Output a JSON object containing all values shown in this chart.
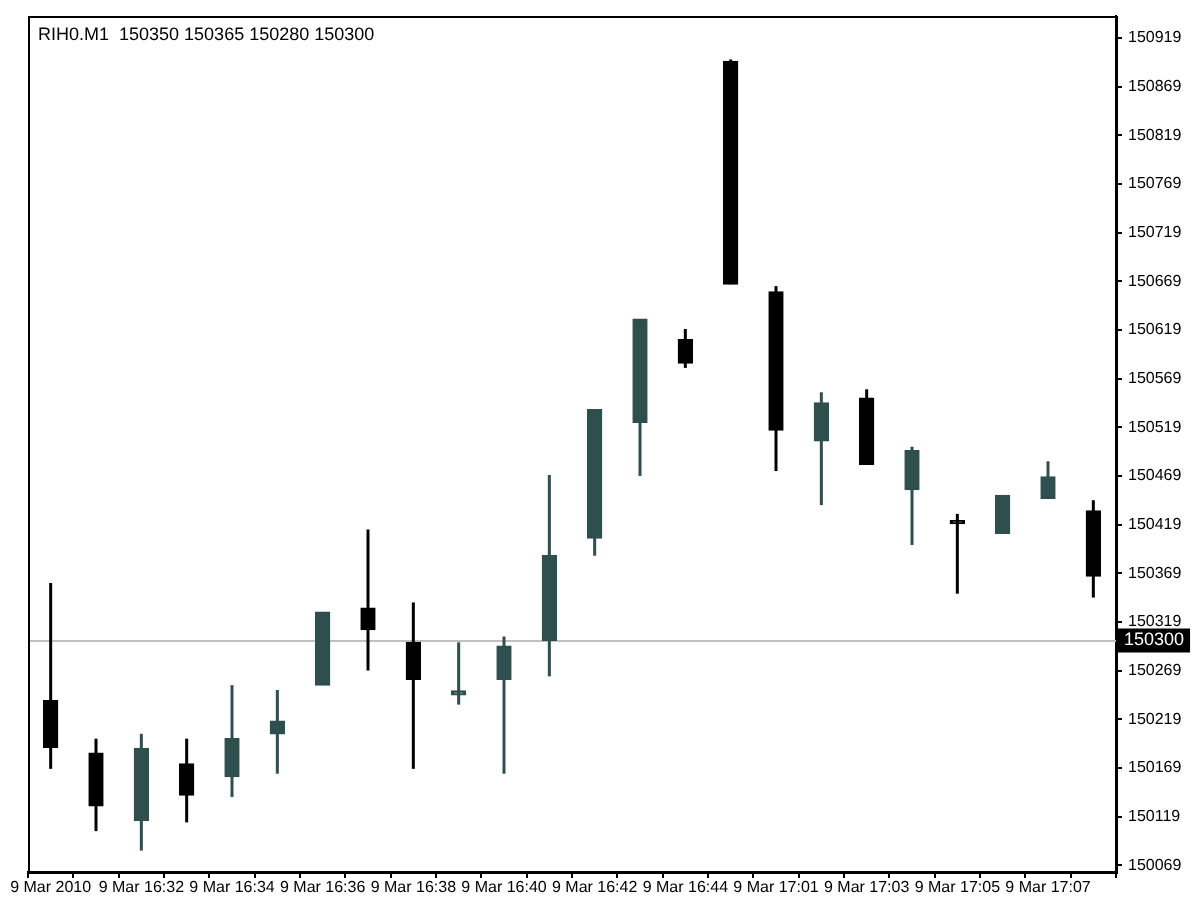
{
  "chart_data": {
    "type": "candlestick",
    "title": "RIH0.M1  150350 150365 150280 150300",
    "categories": [
      "9 Mar 2010",
      null,
      "9 Mar 16:32",
      null,
      "9 Mar 16:34",
      null,
      "9 Mar 16:36",
      null,
      "9 Mar 16:38",
      null,
      "9 Mar 16:40",
      null,
      "9 Mar 16:42",
      null,
      "9 Mar 16:44",
      null,
      "9 Mar 17:01",
      null,
      "9 Mar 17:03",
      null,
      "9 Mar 17:05",
      null,
      "9 Mar 17:07",
      null
    ],
    "ohlc": [
      [
        150238,
        150359,
        150168,
        150190
      ],
      [
        150184,
        150199,
        150104,
        150130
      ],
      [
        150115,
        150204,
        150084,
        150189
      ],
      [
        150173,
        150199,
        150113,
        150141
      ],
      [
        150160,
        150254,
        150139,
        150199
      ],
      [
        150204,
        150249,
        150163,
        150217
      ],
      [
        150254,
        150329,
        150254,
        150329
      ],
      [
        150333,
        150414,
        150269,
        150311
      ],
      [
        150298,
        150339,
        150168,
        150260
      ],
      [
        150244,
        150298,
        150234,
        150248
      ],
      [
        150260,
        150304,
        150163,
        150294
      ],
      [
        150300,
        150470,
        150263,
        150387
      ],
      [
        150405,
        150537,
        150387,
        150537
      ],
      [
        150524,
        150630,
        150469,
        150630
      ],
      [
        150609,
        150620,
        150580,
        150585
      ],
      [
        150895,
        150897,
        150666,
        150666
      ],
      [
        150658,
        150664,
        150474,
        150516
      ],
      [
        150505,
        150555,
        150439,
        150544
      ],
      [
        150549,
        150558,
        150481,
        150481
      ],
      [
        150455,
        150499,
        150398,
        150495
      ],
      [
        150423,
        150430,
        150348,
        150420
      ],
      [
        150410,
        150449,
        150410,
        150449
      ],
      [
        150446,
        150484,
        150446,
        150468
      ],
      [
        150433,
        150444,
        150344,
        150366
      ]
    ],
    "colors": [
      "#000000",
      "#000000",
      "#2f4f4f",
      "#000000",
      "#2f4f4f",
      "#2f4f4f",
      "#2f4f4f",
      "#000000",
      "#000000",
      "#2f4f4f",
      "#2f4f4f",
      "#2f4f4f",
      "#2f4f4f",
      "#2f4f4f",
      "#000000",
      "#000000",
      "#000000",
      "#2f4f4f",
      "#000000",
      "#2f4f4f",
      "#000000",
      "#2f4f4f",
      "#2f4f4f",
      "#000000"
    ],
    "ylim": [
      150062,
      150942
    ],
    "yticks": [
      150069,
      150119,
      150169,
      150219,
      150269,
      150319,
      150369,
      150419,
      150469,
      150519,
      150569,
      150619,
      150669,
      150719,
      150769,
      150819,
      150869,
      150919
    ],
    "ref_lines": [
      {
        "axis": "y",
        "value": 150300,
        "label": "150300",
        "color": "#c0c0c0"
      }
    ],
    "grid": false,
    "legend": false
  }
}
